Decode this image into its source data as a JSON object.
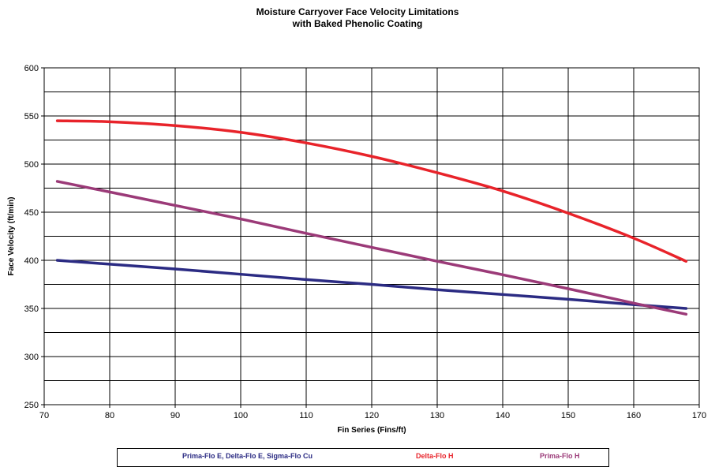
{
  "chart_data": {
    "type": "line",
    "title": "Moisture Carryover Face Velocity Limitations",
    "subtitle": "with Baked Phenolic Coating",
    "xlabel": "Fin Series (Fins/ft)",
    "ylabel": "Face Velocity (ft/min)",
    "xlim": [
      70,
      170
    ],
    "ylim": [
      250,
      600
    ],
    "xticks": [
      70,
      80,
      90,
      100,
      110,
      120,
      130,
      140,
      150,
      160,
      170
    ],
    "yticks": [
      250,
      300,
      350,
      400,
      450,
      500,
      550,
      600
    ],
    "grid": true,
    "legend_position": "bottom",
    "series": [
      {
        "name": "Prima-Flo E, Delta-Flo E, Sigma-Flo Cu",
        "color": "#2b2b83",
        "x": [
          72,
          80,
          90,
          100,
          110,
          120,
          130,
          140,
          150,
          160,
          168
        ],
        "y": [
          400,
          396,
          391,
          385.5,
          380,
          375,
          369.5,
          364.5,
          359.5,
          354,
          350
        ]
      },
      {
        "name": "Delta-Flo H",
        "color": "#e8232a",
        "x": [
          72,
          80,
          90,
          100,
          110,
          120,
          130,
          140,
          150,
          160,
          168
        ],
        "y": [
          545,
          544,
          540,
          533,
          522,
          508,
          491,
          472,
          449,
          423,
          399
        ]
      },
      {
        "name": "Prima-Flo H",
        "color": "#9b3a78",
        "x": [
          72,
          80,
          90,
          100,
          110,
          120,
          130,
          140,
          150,
          160,
          168
        ],
        "y": [
          482,
          471,
          457,
          443,
          428,
          413.5,
          399,
          385,
          370.5,
          355.5,
          344
        ]
      }
    ]
  }
}
